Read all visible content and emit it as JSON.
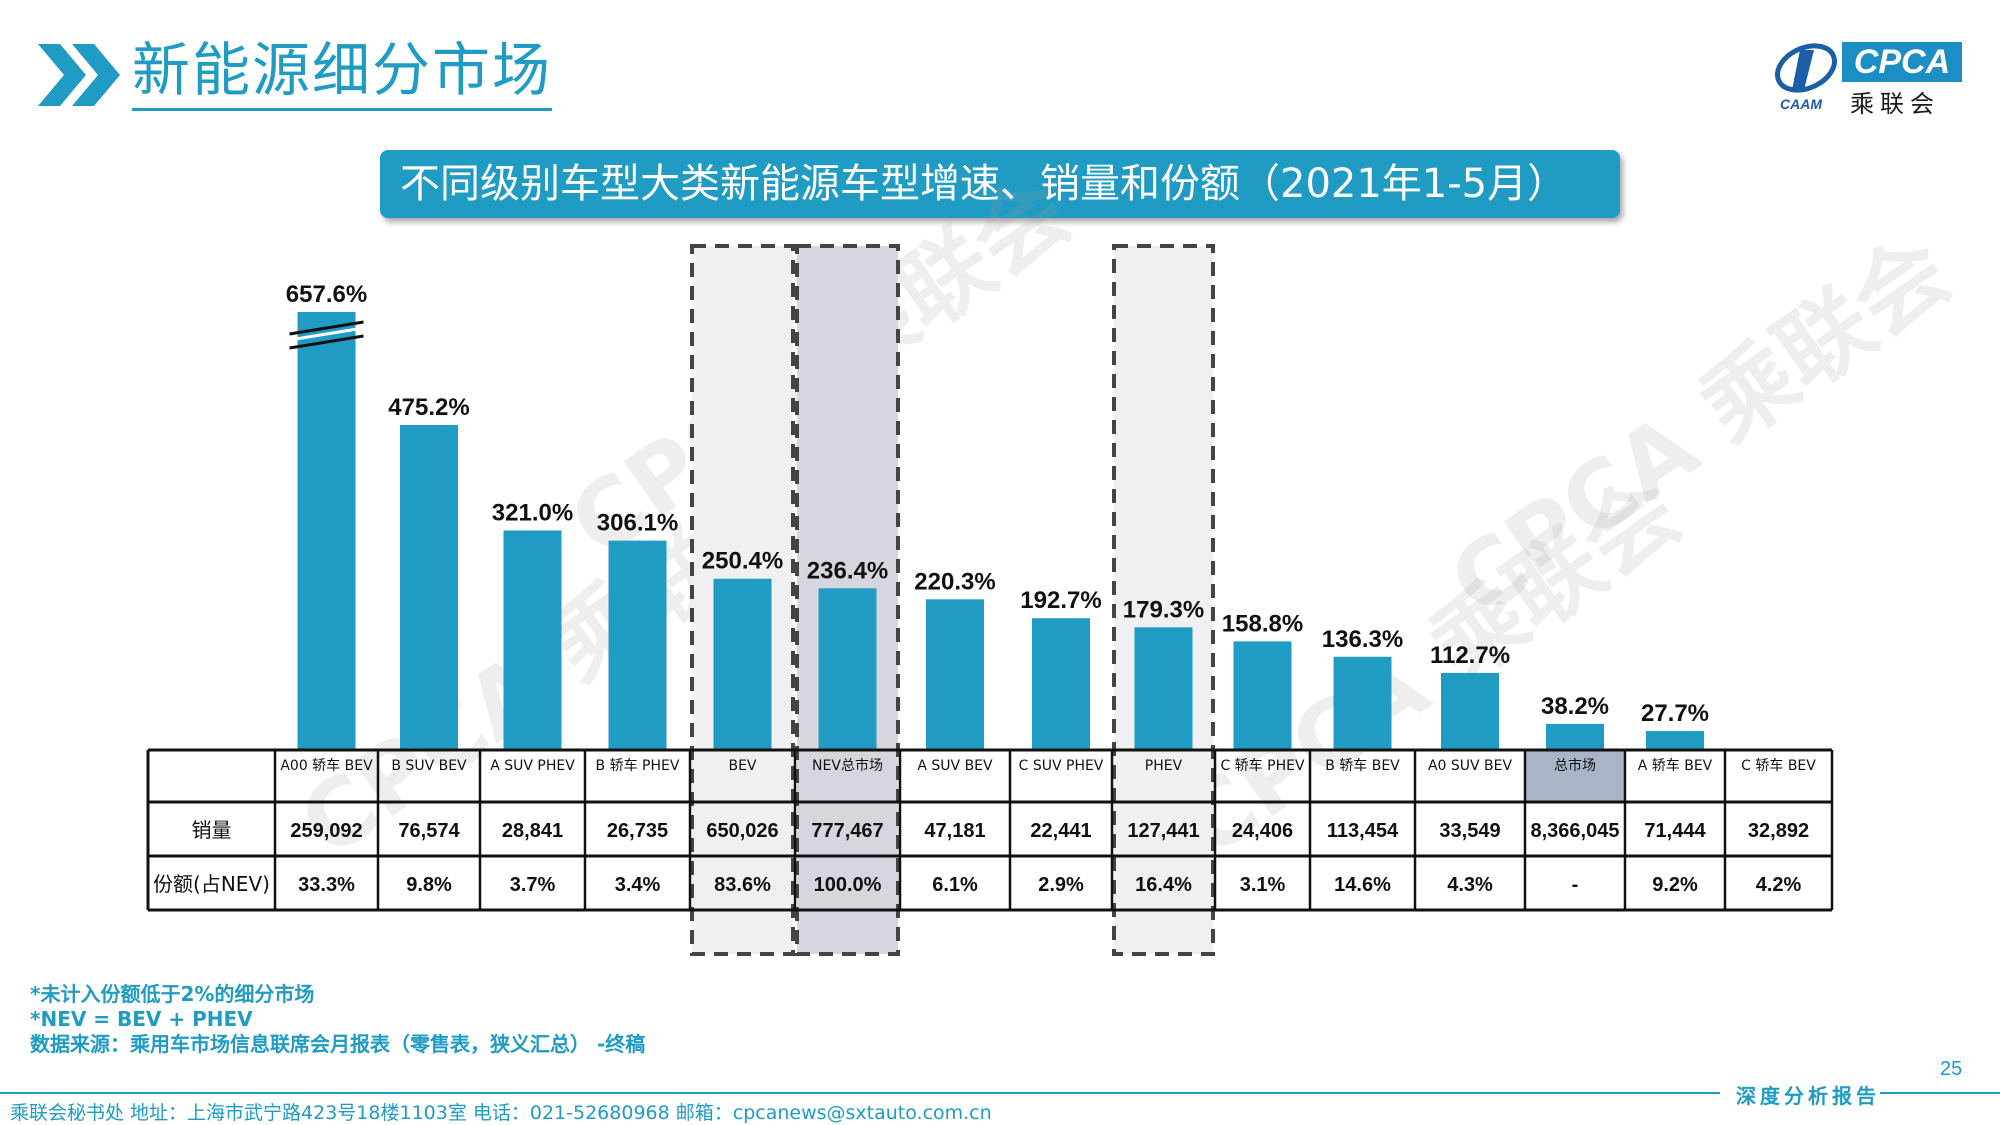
{
  "header": {
    "title": "新能源细分市场",
    "logo_text": "CPCA",
    "logo_cn": "乘联会",
    "logo_sub": "CAAM"
  },
  "colors": {
    "accent": "#1f9bc4",
    "bar": "#1f9bc4",
    "highlight": "#d6d6df"
  },
  "chart_data": {
    "type": "bar",
    "title": "不同级别车型大类新能源车型增速、销量和份额（2021年1-5月）",
    "categories": [
      "A00 轿车 BEV",
      "B SUV BEV",
      "A SUV PHEV",
      "B 轿车 PHEV",
      "BEV",
      "NEV总市场",
      "A SUV BEV",
      "C SUV PHEV",
      "PHEV",
      "C 轿车 PHEV",
      "B 轿车 BEV",
      "A0 SUV BEV",
      "总市场",
      "A 轿车 BEV",
      "C 轿车 BEV"
    ],
    "values": [
      657.6,
      475.2,
      321.0,
      306.1,
      250.4,
      236.4,
      220.3,
      192.7,
      179.3,
      158.8,
      136.3,
      112.7,
      38.2,
      27.7,
      null
    ],
    "value_labels": [
      "657.6%",
      "475.2%",
      "321.0%",
      "306.1%",
      "250.4%",
      "236.4%",
      "220.3%",
      "192.7%",
      "179.3%",
      "158.8%",
      "136.3%",
      "112.7%",
      "38.2%",
      "27.7%",
      ""
    ],
    "axis_break_on": "A00 轿车 BEV",
    "highlighted_columns": [
      "BEV",
      "NEV总市场",
      "PHEV"
    ],
    "table": {
      "row_labels": [
        "销量",
        "份额(占NEV)"
      ],
      "sales": [
        "259,092",
        "76,574",
        "28,841",
        "26,735",
        "650,026",
        "777,467",
        "47,181",
        "22,441",
        "127,441",
        "24,406",
        "113,454",
        "33,549",
        "8,366,045",
        "71,444",
        "32,892"
      ],
      "share": [
        "33.3%",
        "9.8%",
        "3.7%",
        "3.4%",
        "83.6%",
        "100.0%",
        "6.1%",
        "2.9%",
        "16.4%",
        "3.1%",
        "14.6%",
        "4.3%",
        "-",
        "9.2%",
        "4.2%"
      ]
    },
    "watermark": "CPCA 乘联会"
  },
  "notes": [
    "*未计入份额低于2%的细分市场",
    "*NEV = BEV + PHEV",
    "数据来源：乘用车市场信息联席会月报表（零售表，狭义汇总） -终稿"
  ],
  "footer": {
    "page_number": "25",
    "tag": "深度分析报告",
    "address": "乘联会秘书处   地址：上海市武宁路423号18楼1103室   电话：021-52680968    邮箱：cpcanews@sxtauto.com.cn"
  }
}
